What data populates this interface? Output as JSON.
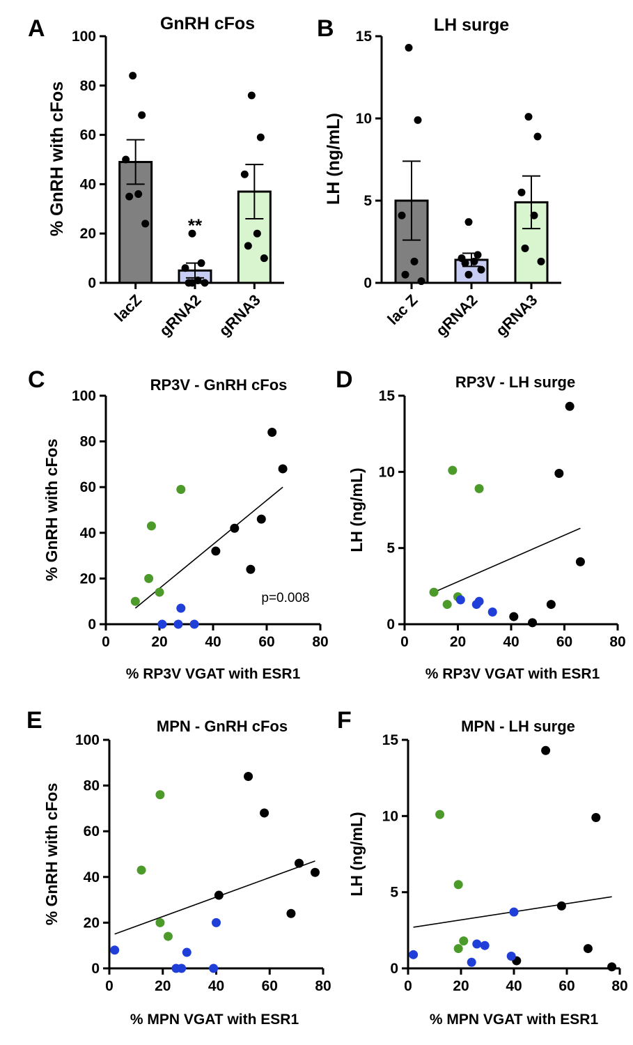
{
  "colors": {
    "lacz_bar": "#808080",
    "grna2_bar": "#c7cdf2",
    "grna3_bar": "#d8f5cf",
    "black_point": "#000000",
    "green_point": "#4c9a2a",
    "blue_point": "#1f3fd8"
  },
  "chart_data": [
    {
      "id": "A",
      "panel_label": "A",
      "type": "bar",
      "title": "GnRH cFos",
      "ylabel": "% GnRH with cFos",
      "xlabel": "",
      "ylim": [
        0,
        100
      ],
      "yticks": [
        0,
        20,
        40,
        60,
        80,
        100
      ],
      "categories": [
        "lacZ",
        "gRNA2",
        "gRNA3"
      ],
      "values": [
        49,
        5,
        37
      ],
      "errors": [
        9,
        3,
        11
      ],
      "bar_colors": [
        "#808080",
        "#c7cdf2",
        "#d8f5cf"
      ],
      "points": [
        [
          84,
          68,
          50,
          36,
          35,
          24
        ],
        [
          20,
          8,
          6,
          1,
          0,
          0,
          0
        ],
        [
          76,
          59,
          44,
          20,
          15,
          10
        ]
      ],
      "annotations": [
        {
          "category": "gRNA2",
          "text": "**",
          "y": 25
        }
      ]
    },
    {
      "id": "B",
      "panel_label": "B",
      "type": "bar",
      "title": "LH surge",
      "ylabel": "LH (ng/mL)",
      "xlabel": "",
      "ylim": [
        0,
        15
      ],
      "yticks": [
        0,
        5,
        10,
        15
      ],
      "categories": [
        "lac Z",
        "gRNA2",
        "gRNA3"
      ],
      "values": [
        5.0,
        1.4,
        4.9
      ],
      "errors": [
        2.4,
        0.4,
        1.6
      ],
      "bar_colors": [
        "#808080",
        "#c7cdf2",
        "#d8f5cf"
      ],
      "points": [
        [
          14.3,
          9.9,
          4.1,
          1.3,
          0.5,
          0.1
        ],
        [
          3.7,
          1.7,
          1.5,
          1.3,
          1.2,
          0.8,
          0.5
        ],
        [
          10.1,
          8.9,
          5.5,
          4.1,
          2.1,
          1.3
        ]
      ],
      "annotations": []
    },
    {
      "id": "C",
      "panel_label": "C",
      "type": "scatter",
      "title": "RP3V - GnRH cFos",
      "ylabel": "% GnRH with cFos",
      "xlabel": "% RP3V VGAT with ESR1",
      "xlim": [
        0,
        80
      ],
      "ylim": [
        0,
        100
      ],
      "xticks": [
        0,
        20,
        40,
        60,
        80
      ],
      "yticks": [
        0,
        20,
        40,
        60,
        80,
        100
      ],
      "series": [
        {
          "name": "lacZ",
          "color": "#000000",
          "x": [
            62,
            66,
            58,
            48,
            41,
            54
          ],
          "y": [
            84,
            68,
            46,
            42,
            32,
            24
          ]
        },
        {
          "name": "gRNA3",
          "color": "#4c9a2a",
          "x": [
            28,
            17,
            16,
            20,
            11
          ],
          "y": [
            59,
            43,
            20,
            14,
            10
          ]
        },
        {
          "name": "gRNA2",
          "color": "#1f3fd8",
          "x": [
            28,
            21,
            27,
            33
          ],
          "y": [
            7,
            0,
            0,
            0
          ]
        }
      ],
      "fit": {
        "x": [
          11,
          66
        ],
        "y": [
          7,
          60
        ]
      },
      "annotation": "p=0.008"
    },
    {
      "id": "D",
      "panel_label": "D",
      "type": "scatter",
      "title": "RP3V - LH surge",
      "ylabel": "LH (ng/mL)",
      "xlabel": "% RP3V VGAT with ESR1",
      "xlim": [
        0,
        80
      ],
      "ylim": [
        0,
        15
      ],
      "xticks": [
        0,
        20,
        40,
        60,
        80
      ],
      "yticks": [
        0,
        5,
        10,
        15
      ],
      "series": [
        {
          "name": "lacZ",
          "color": "#000000",
          "x": [
            62,
            58,
            66,
            55,
            41,
            48
          ],
          "y": [
            14.3,
            9.9,
            4.1,
            1.3,
            0.5,
            0.1
          ]
        },
        {
          "name": "gRNA3",
          "color": "#4c9a2a",
          "x": [
            18,
            28,
            11,
            20,
            16
          ],
          "y": [
            10.1,
            8.9,
            2.1,
            1.8,
            1.3
          ]
        },
        {
          "name": "gRNA2",
          "color": "#1f3fd8",
          "x": [
            21,
            28,
            27,
            33
          ],
          "y": [
            1.6,
            1.5,
            1.3,
            0.8
          ]
        }
      ],
      "fit": {
        "x": [
          11,
          66
        ],
        "y": [
          2.1,
          6.3
        ]
      }
    },
    {
      "id": "E",
      "panel_label": "E",
      "type": "scatter",
      "title": "MPN - GnRH cFos",
      "ylabel": "% GnRH with cFos",
      "xlabel": "% MPN VGAT with ESR1",
      "xlim": [
        0,
        80
      ],
      "ylim": [
        0,
        100
      ],
      "xticks": [
        0,
        20,
        40,
        60,
        80
      ],
      "yticks": [
        0,
        20,
        40,
        60,
        80,
        100
      ],
      "series": [
        {
          "name": "lacZ",
          "color": "#000000",
          "x": [
            52,
            58,
            71,
            77,
            41,
            68
          ],
          "y": [
            84,
            68,
            46,
            42,
            32,
            24
          ]
        },
        {
          "name": "gRNA3",
          "color": "#4c9a2a",
          "x": [
            19,
            12,
            19,
            22
          ],
          "y": [
            76,
            43,
            20,
            14
          ]
        },
        {
          "name": "gRNA2",
          "color": "#1f3fd8",
          "x": [
            2,
            40,
            29,
            25,
            27,
            39
          ],
          "y": [
            8,
            20,
            7,
            0,
            0,
            0
          ]
        }
      ],
      "fit": {
        "x": [
          2,
          77
        ],
        "y": [
          15,
          47
        ]
      }
    },
    {
      "id": "F",
      "panel_label": "F",
      "type": "scatter",
      "title": "MPN - LH surge",
      "ylabel": "LH (ng/mL)",
      "xlabel": "% MPN VGAT with ESR1",
      "xlim": [
        0,
        80
      ],
      "ylim": [
        0,
        15
      ],
      "xticks": [
        0,
        20,
        40,
        60,
        80
      ],
      "yticks": [
        0,
        5,
        10,
        15
      ],
      "series": [
        {
          "name": "lacZ",
          "color": "#000000",
          "x": [
            52,
            71,
            58,
            68,
            41,
            77
          ],
          "y": [
            14.3,
            9.9,
            4.1,
            1.3,
            0.5,
            0.1
          ]
        },
        {
          "name": "gRNA3",
          "color": "#4c9a2a",
          "x": [
            12,
            19,
            21,
            19
          ],
          "y": [
            10.1,
            5.5,
            1.8,
            1.3
          ]
        },
        {
          "name": "gRNA2",
          "color": "#1f3fd8",
          "x": [
            2,
            40,
            26,
            29,
            39,
            24
          ],
          "y": [
            0.9,
            3.7,
            1.6,
            1.5,
            0.8,
            0.4
          ]
        }
      ],
      "fit": {
        "x": [
          2,
          77
        ],
        "y": [
          2.7,
          4.7
        ]
      }
    }
  ]
}
